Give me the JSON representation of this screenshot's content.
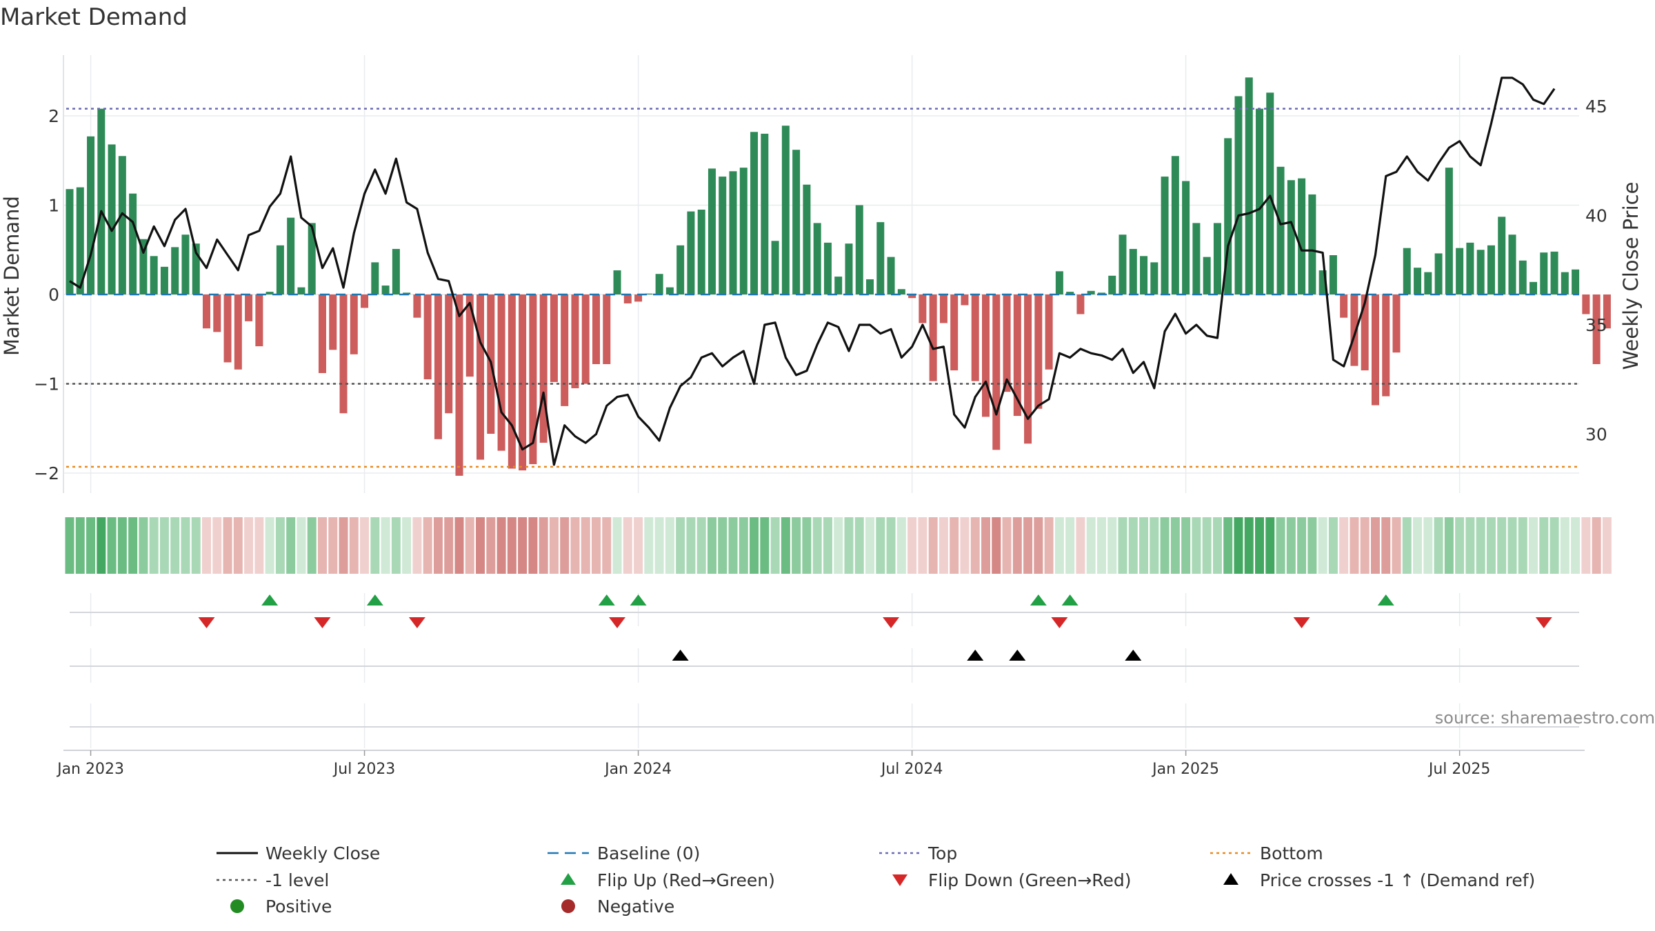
{
  "chart_data": {
    "type": "bar",
    "title": "Market Demand",
    "ylabel": "Market Demand",
    "y2label": "Weekly Close Price",
    "ylim": [
      -2.25,
      2.7
    ],
    "y2lim": [
      27.2,
      48
    ],
    "yticks": [
      {
        "v": 2,
        "label": "2"
      },
      {
        "v": 1,
        "label": "1"
      },
      {
        "v": 0,
        "label": "0"
      },
      {
        "v": -1,
        "label": "−1"
      },
      {
        "v": -2,
        "label": "−2"
      }
    ],
    "y2ticks": [
      {
        "v": 45,
        "label": "45"
      },
      {
        "v": 40,
        "label": "40"
      },
      {
        "v": 35,
        "label": "35"
      },
      {
        "v": 30,
        "label": "30"
      }
    ],
    "xticks": [
      {
        "i": 2,
        "label": "Jan 2023"
      },
      {
        "i": 28,
        "label": "Jul 2023"
      },
      {
        "i": 54,
        "label": "Jan 2024"
      },
      {
        "i": 80,
        "label": "Jul 2024"
      },
      {
        "i": 106,
        "label": "Jan 2025"
      },
      {
        "i": 132,
        "label": "Jul 2025"
      }
    ],
    "reference_lines": {
      "top": 2.08,
      "minus_one": -1.0,
      "bottom": -1.93,
      "baseline": 0
    },
    "demand": [
      1.18,
      1.2,
      1.77,
      2.08,
      1.68,
      1.55,
      1.13,
      0.62,
      0.43,
      0.31,
      0.53,
      0.67,
      0.57,
      -0.38,
      -0.42,
      -0.76,
      -0.84,
      -0.3,
      -0.58,
      0.03,
      0.55,
      0.86,
      0.08,
      0.8,
      -0.88,
      -0.62,
      -1.33,
      -0.67,
      -0.15,
      0.36,
      0.1,
      0.51,
      0.02,
      -0.26,
      -0.95,
      -1.62,
      -1.33,
      -2.03,
      -0.92,
      -1.85,
      -1.56,
      -1.75,
      -1.95,
      -1.97,
      -1.9,
      -1.66,
      -0.98,
      -1.25,
      -1.05,
      -1.0,
      -0.78,
      -0.78,
      0.27,
      -0.1,
      -0.08,
      0.01,
      0.23,
      0.08,
      0.55,
      0.93,
      0.95,
      1.41,
      1.32,
      1.38,
      1.42,
      1.82,
      1.8,
      0.6,
      1.89,
      1.62,
      1.23,
      0.8,
      0.58,
      0.2,
      0.57,
      1.0,
      0.17,
      0.81,
      0.42,
      0.06,
      -0.04,
      -0.32,
      -0.97,
      -0.32,
      -0.85,
      -0.12,
      -0.97,
      -1.37,
      -1.74,
      -1.09,
      -1.36,
      -1.67,
      -1.28,
      -0.84,
      0.26,
      0.03,
      -0.22,
      0.04,
      0.02,
      0.21,
      0.67,
      0.51,
      0.43,
      0.36,
      1.32,
      1.55,
      1.27,
      0.8,
      0.42,
      0.8,
      1.75,
      2.22,
      2.43,
      2.08,
      2.26,
      1.43,
      1.28,
      1.3,
      1.12,
      0.27,
      0.44,
      -0.26,
      -0.8,
      -0.85,
      -1.24,
      -1.14,
      -0.65,
      0.52,
      0.3,
      0.25,
      0.46,
      1.42,
      0.52,
      0.58,
      0.5,
      0.55,
      0.87,
      0.67,
      0.38,
      0.14,
      0.47,
      0.48,
      0.25,
      0.28,
      -0.22,
      -0.78,
      -0.38
    ],
    "shade": [
      4,
      4,
      4,
      5,
      4,
      4,
      4,
      3,
      2,
      2,
      2,
      2,
      2,
      1,
      1,
      2,
      2,
      1,
      1,
      1,
      2,
      3,
      1,
      3,
      2,
      2,
      3,
      2,
      1,
      2,
      1,
      2,
      1,
      1,
      2,
      3,
      3,
      4,
      2,
      4,
      3,
      4,
      4,
      4,
      4,
      3,
      2,
      3,
      2,
      2,
      2,
      2,
      1,
      1,
      1,
      1,
      1,
      1,
      2,
      2,
      2,
      3,
      3,
      3,
      3,
      4,
      4,
      2,
      4,
      3,
      3,
      2,
      2,
      1,
      2,
      2,
      1,
      2,
      2,
      1,
      1,
      1,
      2,
      1,
      2,
      1,
      2,
      3,
      4,
      2,
      3,
      3,
      3,
      2,
      1,
      1,
      1,
      1,
      1,
      1,
      2,
      2,
      2,
      2,
      3,
      3,
      3,
      2,
      2,
      2,
      4,
      5,
      5,
      5,
      5,
      3,
      3,
      3,
      3,
      1,
      2,
      1,
      2,
      2,
      3,
      3,
      2,
      2,
      1,
      1,
      2,
      3,
      2,
      2,
      2,
      2,
      2,
      2,
      2,
      1,
      2,
      2,
      1,
      1,
      1,
      2,
      1
    ],
    "weekly_close": [
      [
        0,
        37.0
      ],
      [
        1,
        36.7
      ],
      [
        2,
        38.2
      ],
      [
        3,
        40.2
      ],
      [
        4,
        39.3
      ],
      [
        5,
        40.1
      ],
      [
        6,
        39.7
      ],
      [
        7,
        38.3
      ],
      [
        8,
        39.5
      ],
      [
        9,
        38.6
      ],
      [
        10,
        39.8
      ],
      [
        11,
        40.3
      ],
      [
        12,
        38.3
      ],
      [
        13,
        37.6
      ],
      [
        14,
        38.9
      ],
      [
        15,
        38.2
      ],
      [
        16,
        37.5
      ],
      [
        17,
        39.1
      ],
      [
        18,
        39.3
      ],
      [
        19,
        40.4
      ],
      [
        20,
        41.0
      ],
      [
        21,
        42.7
      ],
      [
        22,
        39.9
      ],
      [
        23,
        39.5
      ],
      [
        24,
        37.6
      ],
      [
        25,
        38.5
      ],
      [
        26,
        36.7
      ],
      [
        27,
        39.2
      ],
      [
        28,
        41.0
      ],
      [
        29,
        42.1
      ],
      [
        30,
        41.0
      ],
      [
        31,
        42.6
      ],
      [
        32,
        40.6
      ],
      [
        33,
        40.3
      ],
      [
        34,
        38.3
      ],
      [
        35,
        37.1
      ],
      [
        36,
        37.0
      ],
      [
        37,
        35.4
      ],
      [
        38,
        36.0
      ],
      [
        39,
        34.2
      ],
      [
        40,
        33.3
      ],
      [
        41,
        31.0
      ],
      [
        42,
        30.4
      ],
      [
        43,
        29.3
      ],
      [
        44,
        29.6
      ],
      [
        45,
        31.9
      ],
      [
        46,
        28.6
      ],
      [
        47,
        30.4
      ],
      [
        48,
        29.9
      ],
      [
        49,
        29.6
      ],
      [
        50,
        30.0
      ],
      [
        51,
        31.3
      ],
      [
        52,
        31.7
      ],
      [
        53,
        31.8
      ],
      [
        54,
        30.8
      ],
      [
        55,
        30.3
      ],
      [
        56,
        29.7
      ],
      [
        57,
        31.2
      ],
      [
        58,
        32.2
      ],
      [
        59,
        32.6
      ],
      [
        60,
        33.5
      ],
      [
        61,
        33.7
      ],
      [
        62,
        33.1
      ],
      [
        63,
        33.5
      ],
      [
        64,
        33.8
      ],
      [
        65,
        32.3
      ],
      [
        66,
        35.0
      ],
      [
        67,
        35.1
      ],
      [
        68,
        33.5
      ],
      [
        69,
        32.7
      ],
      [
        70,
        32.9
      ],
      [
        71,
        34.1
      ],
      [
        72,
        35.1
      ],
      [
        73,
        34.9
      ],
      [
        74,
        33.8
      ],
      [
        75,
        35.0
      ],
      [
        76,
        35.0
      ],
      [
        77,
        34.6
      ],
      [
        78,
        34.8
      ],
      [
        79,
        33.5
      ],
      [
        80,
        34.0
      ],
      [
        81,
        35.0
      ],
      [
        82,
        33.9
      ],
      [
        83,
        34.0
      ],
      [
        84,
        30.9
      ],
      [
        85,
        30.3
      ],
      [
        86,
        31.7
      ],
      [
        87,
        32.4
      ],
      [
        88,
        30.9
      ],
      [
        89,
        32.5
      ],
      [
        90,
        31.6
      ],
      [
        91,
        30.7
      ],
      [
        92,
        31.3
      ],
      [
        93,
        31.6
      ],
      [
        94,
        33.7
      ],
      [
        95,
        33.5
      ],
      [
        96,
        33.9
      ],
      [
        97,
        33.7
      ],
      [
        98,
        33.6
      ],
      [
        99,
        33.4
      ],
      [
        100,
        33.9
      ],
      [
        101,
        32.8
      ],
      [
        102,
        33.3
      ],
      [
        103,
        32.1
      ],
      [
        104,
        34.7
      ],
      [
        105,
        35.5
      ],
      [
        106,
        34.6
      ],
      [
        107,
        35.0
      ],
      [
        108,
        34.5
      ],
      [
        109,
        34.4
      ],
      [
        110,
        38.6
      ],
      [
        111,
        40.0
      ],
      [
        112,
        40.1
      ],
      [
        113,
        40.3
      ],
      [
        114,
        40.9
      ],
      [
        115,
        39.6
      ],
      [
        116,
        39.7
      ],
      [
        117,
        38.4
      ],
      [
        118,
        38.4
      ],
      [
        119,
        38.3
      ],
      [
        120,
        33.4
      ],
      [
        121,
        33.1
      ],
      [
        122,
        34.5
      ],
      [
        123,
        36.0
      ],
      [
        124,
        38.2
      ],
      [
        125,
        41.8
      ],
      [
        126,
        42.0
      ],
      [
        127,
        42.7
      ],
      [
        128,
        42.0
      ],
      [
        129,
        41.6
      ],
      [
        130,
        42.4
      ],
      [
        131,
        43.1
      ],
      [
        132,
        43.4
      ],
      [
        133,
        42.7
      ],
      [
        134,
        42.3
      ],
      [
        135,
        44.2
      ],
      [
        136,
        46.3
      ],
      [
        137,
        46.3
      ],
      [
        138,
        46.0
      ],
      [
        139,
        45.3
      ],
      [
        140,
        45.1
      ],
      [
        141,
        45.8
      ]
    ],
    "flip_up": [
      19,
      29,
      51,
      54,
      92,
      95,
      125
    ],
    "flip_down": [
      13,
      24,
      33,
      52,
      78,
      94,
      117,
      140
    ],
    "price_crosses": [
      58,
      86,
      90,
      101
    ],
    "colors": {
      "positive": "#2e8b57",
      "negative": "#cd5c5c",
      "price": "#111111",
      "top": "#6a6ab4",
      "minus_one": "#555555",
      "bottom": "#e8891c",
      "baseline": "#1f77b4",
      "flip_up": "#22a045",
      "flip_down": "#d62728",
      "cross": "#000000",
      "grid": "#e9ebee",
      "strip_green": [
        "#cfe9d6",
        "#a9d8b6",
        "#8ccb9d",
        "#6bbc83",
        "#45a862"
      ],
      "strip_red": [
        "#f0d0ce",
        "#e6b4b1",
        "#dd9e9b",
        "#d48784",
        "#c97370"
      ]
    },
    "legend": {
      "weekly_close": "Weekly Close",
      "baseline": "Baseline (0)",
      "top": "Top",
      "bottom": "Bottom",
      "minus_one": "-1 level",
      "flip_up": "Flip Up (Red→Green)",
      "flip_down": "Flip Down (Green→Red)",
      "price_cross": "Price crosses -1 ↑ (Demand ref)",
      "positive": "Positive",
      "negative": "Negative"
    },
    "source": "source: sharemaestro.com"
  }
}
